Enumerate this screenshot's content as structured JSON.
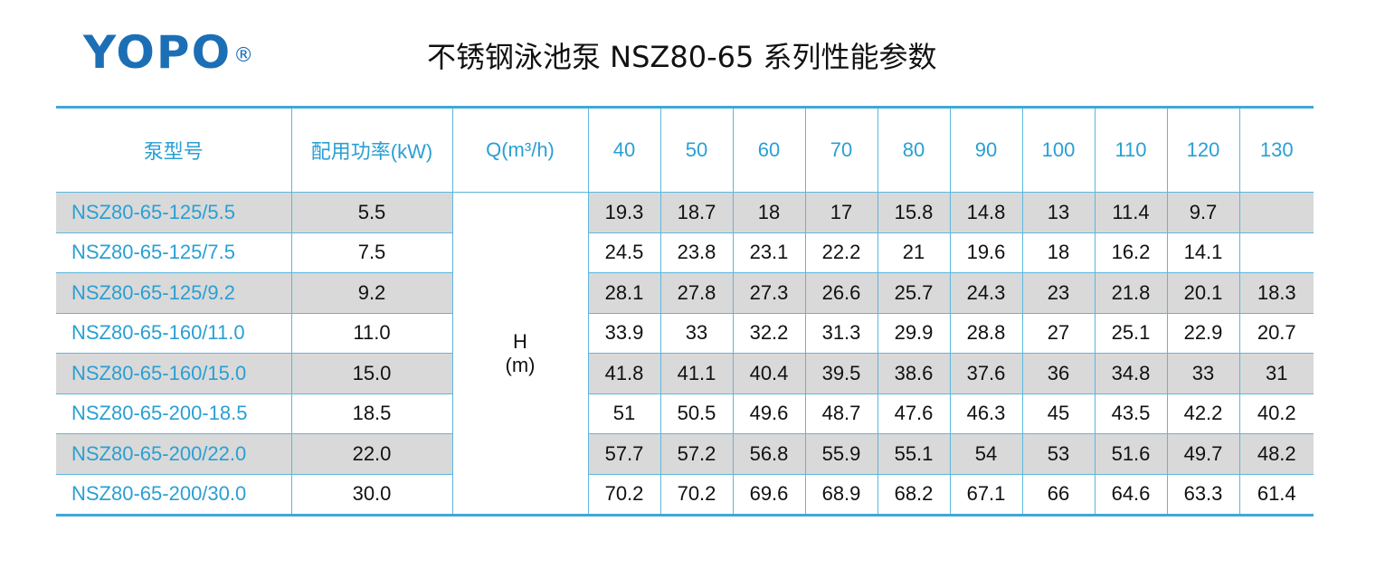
{
  "logo": {
    "text": "YOPO",
    "mark": "®"
  },
  "title": "不锈钢泳池泵 NSZ80-65 系列性能参数",
  "table": {
    "headers": {
      "model": "泵型号",
      "power": "配用功率(kW)",
      "flow": "Q(m³/h)",
      "flows": [
        "40",
        "50",
        "60",
        "70",
        "80",
        "90",
        "100",
        "110",
        "120",
        "130"
      ]
    },
    "head_label": "H",
    "head_unit": "(m)",
    "rows": [
      {
        "model": "NSZ80-65-125/5.5",
        "power": "5.5",
        "values": [
          "19.3",
          "18.7",
          "18",
          "17",
          "15.8",
          "14.8",
          "13",
          "11.4",
          "9.7",
          ""
        ]
      },
      {
        "model": "NSZ80-65-125/7.5",
        "power": "7.5",
        "values": [
          "24.5",
          "23.8",
          "23.1",
          "22.2",
          "21",
          "19.6",
          "18",
          "16.2",
          "14.1",
          ""
        ]
      },
      {
        "model": "NSZ80-65-125/9.2",
        "power": "9.2",
        "values": [
          "28.1",
          "27.8",
          "27.3",
          "26.6",
          "25.7",
          "24.3",
          "23",
          "21.8",
          "20.1",
          "18.3"
        ]
      },
      {
        "model": "NSZ80-65-160/11.0",
        "power": "11.0",
        "values": [
          "33.9",
          "33",
          "32.2",
          "31.3",
          "29.9",
          "28.8",
          "27",
          "25.1",
          "22.9",
          "20.7"
        ]
      },
      {
        "model": "NSZ80-65-160/15.0",
        "power": "15.0",
        "values": [
          "41.8",
          "41.1",
          "40.4",
          "39.5",
          "38.6",
          "37.6",
          "36",
          "34.8",
          "33",
          "31"
        ]
      },
      {
        "model": "NSZ80-65-200-18.5",
        "power": "18.5",
        "values": [
          "51",
          "50.5",
          "49.6",
          "48.7",
          "47.6",
          "46.3",
          "45",
          "43.5",
          "42.2",
          "40.2"
        ]
      },
      {
        "model": "NSZ80-65-200/22.0",
        "power": "22.0",
        "values": [
          "57.7",
          "57.2",
          "56.8",
          "55.9",
          "55.1",
          "54",
          "53",
          "51.6",
          "49.7",
          "48.2"
        ]
      },
      {
        "model": "NSZ80-65-200/30.0",
        "power": "30.0",
        "values": [
          "70.2",
          "70.2",
          "69.6",
          "68.9",
          "68.2",
          "67.1",
          "66",
          "64.6",
          "63.3",
          "61.4"
        ]
      }
    ]
  },
  "colors": {
    "brand": "#1c6fb5",
    "accent": "#2a9fd4",
    "rule": "#3fa8d8",
    "shade": "#d9d9d9"
  }
}
